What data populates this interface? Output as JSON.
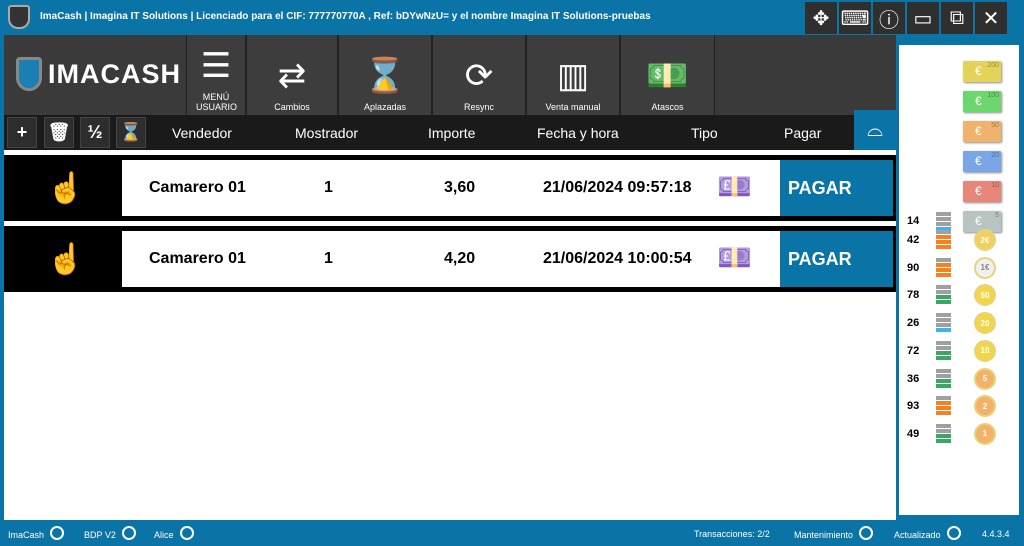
{
  "title": "ImaCash | Imagina IT Solutions  |  Licenciado para el CIF: 777770770A , Ref: bDYwNzU= y el nombre Imagina IT Solutions-pruebas",
  "window_controls": [
    "move-icon",
    "keyboard-icon",
    "info-icon",
    "minimize-icon",
    "maximize-icon",
    "close-icon"
  ],
  "logo": "IMACASH",
  "toolbar": [
    {
      "label": "MENÚ USUARIO",
      "icon": "menu-icon"
    },
    {
      "label": "Cambios",
      "icon": "exchange-icon"
    },
    {
      "label": "Aplazadas",
      "icon": "hourglass-icon"
    },
    {
      "label": "Resync",
      "icon": "sync-icon"
    },
    {
      "label": "Venta manual",
      "icon": "abacus-icon"
    },
    {
      "label": "Atascos",
      "icon": "money-jam-icon"
    }
  ],
  "header_buttons": [
    "+",
    "🗑",
    "½",
    "⌛"
  ],
  "columns": {
    "vendedor": "Vendedor",
    "mostrador": "Mostrador",
    "importe": "Importe",
    "fecha": "Fecha y hora",
    "tipo": "Tipo",
    "pagar": "Pagar"
  },
  "rows": [
    {
      "vendedor": "Camarero 01",
      "mostrador": "1",
      "importe": "3,60",
      "fecha": "21/06/2024 09:57:18",
      "pagar": "PAGAR"
    },
    {
      "vendedor": "Camarero 01",
      "mostrador": "1",
      "importe": "4,20",
      "fecha": "21/06/2024 10:00:54",
      "pagar": "PAGAR"
    }
  ],
  "notes": [
    {
      "value": "200",
      "color": "#e3d35a"
    },
    {
      "value": "100",
      "color": "#6ed66e"
    },
    {
      "value": "50",
      "color": "#efb36e"
    },
    {
      "value": "20",
      "color": "#7aa6e6"
    },
    {
      "value": "10",
      "color": "#e6877a"
    },
    {
      "value": "5",
      "color": "#b7c4c2",
      "count": "14",
      "level": 1,
      "level_color": "#3bb6e8"
    }
  ],
  "coins": [
    {
      "label": "2€",
      "count": "42",
      "level": 3,
      "level_color": "#f58220",
      "color": "#f0d060"
    },
    {
      "label": "1€",
      "count": "90",
      "level": 3,
      "level_color": "#f58220",
      "color": "#f0f0f0"
    },
    {
      "label": "50",
      "count": "78",
      "level": 2,
      "level_color": "#3aa863",
      "color": "#f2d64a"
    },
    {
      "label": "20",
      "count": "26",
      "level": 1,
      "level_color": "#3bb6e8",
      "color": "#f2d64a"
    },
    {
      "label": "10",
      "count": "72",
      "level": 2,
      "level_color": "#3aa863",
      "color": "#f2d64a"
    },
    {
      "label": "5",
      "count": "36",
      "level": 2,
      "level_color": "#3aa863",
      "color": "#f3b267"
    },
    {
      "label": "2",
      "count": "93",
      "level": 3,
      "level_color": "#f58220",
      "color": "#f3b267"
    },
    {
      "label": "1",
      "count": "49",
      "level": 2,
      "level_color": "#3aa863",
      "color": "#f3b267"
    }
  ],
  "footer": {
    "left": [
      "ImaCash",
      "BDP V2",
      "Alice"
    ],
    "transacciones": "Transacciones: 2/2",
    "mantenimiento": "Mantenimiento",
    "actualizado": "Actualizado",
    "version": "4.4.3.4"
  }
}
